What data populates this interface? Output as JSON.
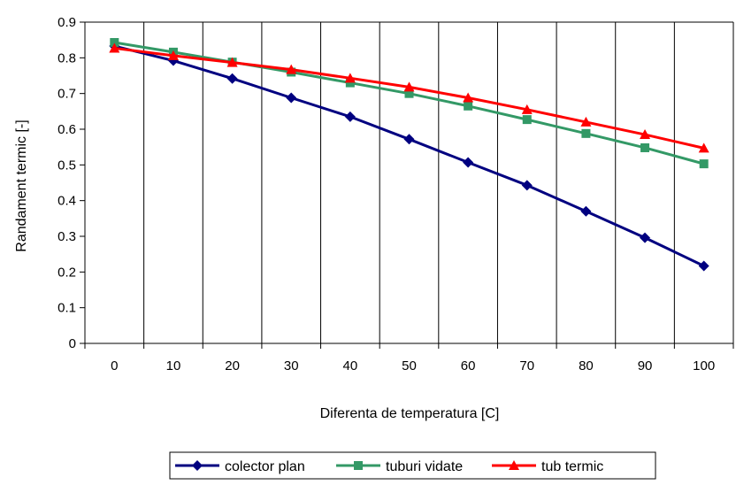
{
  "chart_data": {
    "type": "line",
    "title": "",
    "xlabel": "Diferenta de temperatura [C]",
    "ylabel": "Randament termic [-]",
    "categories": [
      "0",
      "10",
      "20",
      "30",
      "40",
      "50",
      "60",
      "70",
      "80",
      "90",
      "100"
    ],
    "x": [
      0,
      10,
      20,
      30,
      40,
      50,
      60,
      70,
      80,
      90,
      100
    ],
    "ylim": [
      0,
      0.9
    ],
    "yticks": [
      "0",
      "0.1",
      "0.2",
      "0.3",
      "0.4",
      "0.5",
      "0.6",
      "0.7",
      "0.8",
      "0.9"
    ],
    "grid": "vertical",
    "legend_position": "bottom",
    "series": [
      {
        "name": "colector plan",
        "color": "#000080",
        "marker": "diamond",
        "values": [
          0.833,
          0.792,
          0.742,
          0.688,
          0.635,
          0.572,
          0.507,
          0.443,
          0.37,
          0.296,
          0.217
        ]
      },
      {
        "name": "tuburi vidate",
        "color": "#339966",
        "marker": "square",
        "values": [
          0.843,
          0.816,
          0.788,
          0.76,
          0.73,
          0.7,
          0.665,
          0.627,
          0.588,
          0.548,
          0.503
        ]
      },
      {
        "name": "tub termic",
        "color": "#ff0000",
        "marker": "triangle",
        "values": [
          0.827,
          0.806,
          0.787,
          0.767,
          0.743,
          0.718,
          0.688,
          0.655,
          0.62,
          0.585,
          0.547
        ]
      }
    ]
  }
}
